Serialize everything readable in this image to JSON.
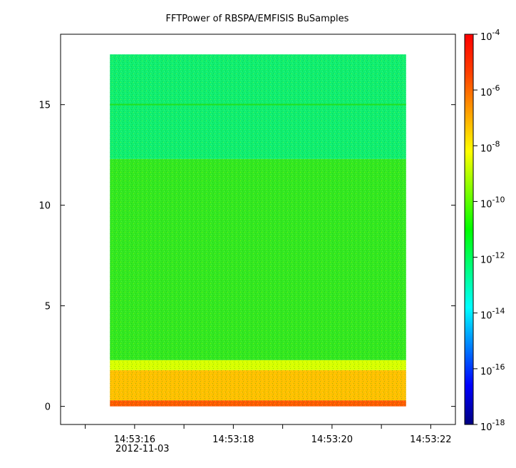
{
  "chart_data": {
    "type": "heatmap",
    "title": "FFTPower of RBSPA/EMFISIS  BuSamples",
    "xlabel": "",
    "ylabel": "",
    "date_label": "2012-11-03",
    "x_ticks": [
      "14:53:16",
      "14:53:18",
      "14:53:20",
      "14:53:22"
    ],
    "x_tick_values_s": [
      16,
      18,
      20,
      22
    ],
    "x_minor_tick_values_s": [
      15,
      16,
      17,
      18,
      19,
      20,
      21,
      22
    ],
    "xlim_s": [
      14.5,
      22.5
    ],
    "data_time_range_s": [
      15.5,
      21.5
    ],
    "y_ticks": [
      "0",
      "5",
      "10",
      "15"
    ],
    "y_tick_values": [
      0,
      5,
      10,
      15
    ],
    "ylim": [
      -0.9,
      18.5
    ],
    "data_freq_range": [
      0,
      17.5
    ],
    "colorbar": {
      "scale": "log",
      "range": [
        1e-18,
        0.0001
      ],
      "tick_exponents": [
        -4,
        -6,
        -8,
        -10,
        -12,
        -14,
        -16,
        -18
      ],
      "tick_base": "10",
      "colors": [
        "#000080",
        "#0000ff",
        "#0080ff",
        "#00ffff",
        "#00ff80",
        "#00ff00",
        "#80ff00",
        "#ffff00",
        "#ffa000",
        "#ff4000",
        "#ff0000"
      ]
    },
    "bands": [
      {
        "y_from": 0,
        "y_to": 0.3,
        "level": "1e-7",
        "color": "#ff5a00"
      },
      {
        "y_from": 0.3,
        "y_to": 1.8,
        "level": "1e-8",
        "color": "#ffc000"
      },
      {
        "y_from": 1.8,
        "y_to": 2.3,
        "level": "1e-9",
        "color": "#d8ff00"
      },
      {
        "y_from": 2.3,
        "y_to": 12.3,
        "level": "1e-11",
        "color": "#33e820"
      },
      {
        "y_from": 12.3,
        "y_to": 17.5,
        "level": "1e-12",
        "color": "#10ee70"
      }
    ],
    "lines": [
      {
        "y": 15.0,
        "color": "#20e020",
        "label": ""
      }
    ]
  }
}
